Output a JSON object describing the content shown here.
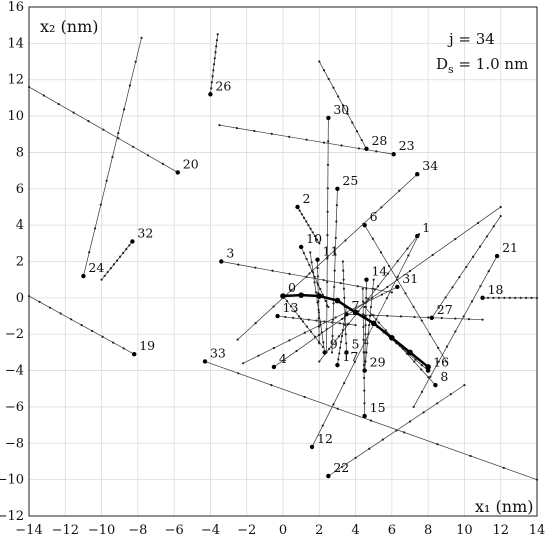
{
  "chart_data": {
    "type": "line",
    "title": "",
    "xlabel": "x₁ (nm)",
    "ylabel": "x₂ (nm)",
    "xlim": [
      -14,
      14
    ],
    "ylim": [
      -12,
      16
    ],
    "grid": true,
    "xticks": [
      "−14",
      "−12",
      "−10",
      "−8",
      "−6",
      "−4",
      "−2",
      "0",
      "2",
      "4",
      "6",
      "8",
      "10",
      "12",
      "14"
    ],
    "yticks": [
      "−12",
      "−10",
      "−8",
      "−6",
      "−4",
      "−2",
      "0",
      "2",
      "4",
      "6",
      "8",
      "10",
      "12",
      "14",
      "16"
    ],
    "annotations": [
      "j = 34",
      "D",
      "s",
      " = 1.0 nm"
    ],
    "highlighted_trajectory": [
      [
        0,
        0.1
      ],
      [
        1,
        0.15
      ],
      [
        2,
        0.1
      ],
      [
        3,
        -0.15
      ],
      [
        4,
        -0.8
      ],
      [
        5,
        -1.4
      ],
      [
        6,
        -2.2
      ],
      [
        7,
        -3.0
      ],
      [
        8,
        -3.8
      ]
    ],
    "series": [
      {
        "label": "0",
        "x": [
          0,
          2.2
        ],
        "y": [
          0.1,
          -2.7
        ]
      },
      {
        "label": "1",
        "x": [
          7.4,
          2
        ],
        "y": [
          3.4,
          -3.5
        ]
      },
      {
        "label": "2",
        "x": [
          0.8,
          2
        ],
        "y": [
          5,
          3
        ]
      },
      {
        "label": "3",
        "x": [
          -3.4,
          6
        ],
        "y": [
          2,
          0.3
        ]
      },
      {
        "label": "4",
        "x": [
          -0.5,
          12
        ],
        "y": [
          -3.8,
          5
        ]
      },
      {
        "label": "5",
        "x": [
          3.5,
          3.3
        ],
        "y": [
          -3,
          2
        ]
      },
      {
        "label": "6",
        "x": [
          4.5,
          9
        ],
        "y": [
          4,
          -3.5
        ]
      },
      {
        "label": "7",
        "x": [
          3.5,
          11
        ],
        "y": [
          -0.9,
          -1.2
        ]
      },
      {
        "label": "8",
        "x": [
          8.4,
          4.5
        ],
        "y": [
          -4.8,
          -0.5
        ]
      },
      {
        "label": "9",
        "x": [
          2.3,
          1.5
        ],
        "y": [
          -3,
          2.5
        ]
      },
      {
        "label": "10",
        "x": [
          1,
          2.5
        ],
        "y": [
          2.8,
          -0.5
        ]
      },
      {
        "label": "11",
        "x": [
          1.9,
          2
        ],
        "y": [
          2.1,
          -2.5
        ]
      },
      {
        "label": "12",
        "x": [
          1.6,
          7.5
        ],
        "y": [
          -8.2,
          3.5
        ]
      },
      {
        "label": "13",
        "x": [
          -0.3,
          4
        ],
        "y": [
          -1,
          -1.5
        ]
      },
      {
        "label": "14",
        "x": [
          4.6,
          4.5
        ],
        "y": [
          1,
          -4
        ]
      },
      {
        "label": "15",
        "x": [
          4.5,
          4.4
        ],
        "y": [
          -6.5,
          0.5
        ]
      },
      {
        "label": "16",
        "x": [
          8,
          4.5
        ],
        "y": [
          -4,
          -1
        ]
      },
      {
        "label": "17",
        "x": [
          3,
          3.5
        ],
        "y": [
          -3.7,
          -0.5
        ]
      },
      {
        "label": "18",
        "x": [
          11,
          14
        ],
        "y": [
          0,
          0
        ]
      },
      {
        "label": "19",
        "x": [
          -8.2,
          -14
        ],
        "y": [
          -3.1,
          0.1
        ]
      },
      {
        "label": "20",
        "x": [
          -5.8,
          -14
        ],
        "y": [
          6.9,
          11.6
        ]
      },
      {
        "label": "21",
        "x": [
          11.8,
          7.2
        ],
        "y": [
          2.3,
          -6
        ]
      },
      {
        "label": "22",
        "x": [
          2.5,
          10
        ],
        "y": [
          -9.8,
          -4.8
        ]
      },
      {
        "label": "23",
        "x": [
          6.1,
          -3.5
        ],
        "y": [
          7.9,
          9.5
        ]
      },
      {
        "label": "24",
        "x": [
          -11,
          -7.8
        ],
        "y": [
          1.2,
          14.3
        ]
      },
      {
        "label": "25",
        "x": [
          3,
          2.7
        ],
        "y": [
          6,
          -3
        ]
      },
      {
        "label": "26",
        "x": [
          -4,
          -3.6
        ],
        "y": [
          11.2,
          14.5
        ]
      },
      {
        "label": "27",
        "x": [
          8.2,
          12
        ],
        "y": [
          -1.1,
          4.5
        ]
      },
      {
        "label": "28",
        "x": [
          4.6,
          2
        ],
        "y": [
          8.2,
          13
        ]
      },
      {
        "label": "29",
        "x": [
          4.5,
          5
        ],
        "y": [
          -4,
          1
        ]
      },
      {
        "label": "30",
        "x": [
          2.5,
          2.4
        ],
        "y": [
          9.9,
          -3
        ]
      },
      {
        "label": "31",
        "x": [
          6.3,
          -2.2
        ],
        "y": [
          0.6,
          -3.6
        ]
      },
      {
        "label": "32",
        "x": [
          -8.3,
          -10
        ],
        "y": [
          3.1,
          1
        ]
      },
      {
        "label": "33",
        "x": [
          -4.3,
          14
        ],
        "y": [
          -3.5,
          -10
        ]
      },
      {
        "label": "34",
        "x": [
          7.4,
          -2.5
        ],
        "y": [
          6.8,
          -2.3
        ]
      }
    ]
  }
}
